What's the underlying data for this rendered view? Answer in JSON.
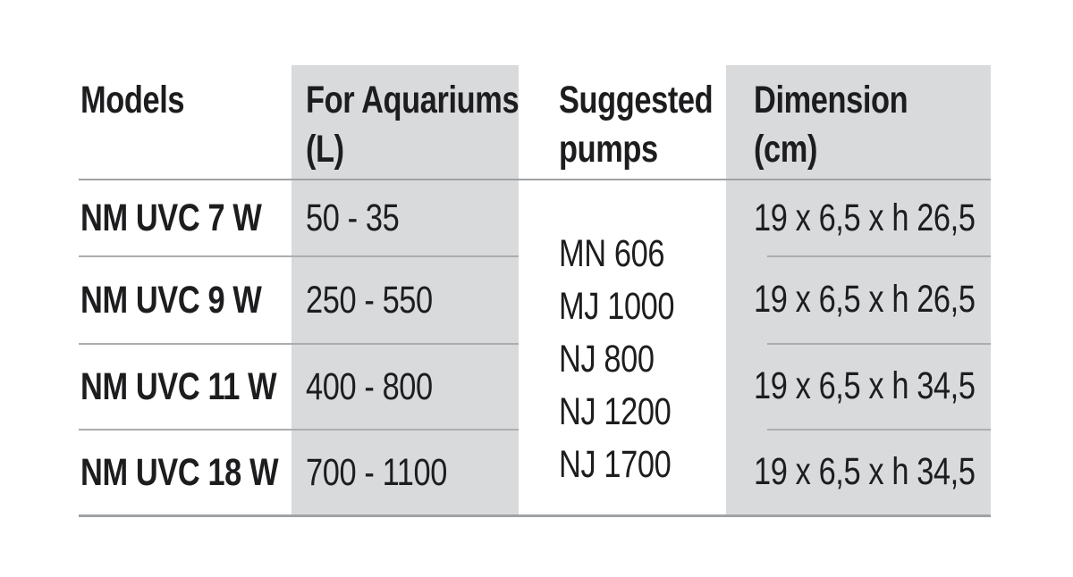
{
  "table": {
    "columns": [
      {
        "id": "models",
        "label_line1": "Models",
        "label_line2": ""
      },
      {
        "id": "aquariums",
        "label_line1": "For Aquariums",
        "label_line2": "(L)"
      },
      {
        "id": "pumps",
        "label_line1": "Suggested",
        "label_line2": "pumps"
      },
      {
        "id": "dimension",
        "label_line1": "Dimension",
        "label_line2": "(cm)"
      }
    ],
    "rows": [
      {
        "model": "NM UVC 7 W",
        "aquariums": "50 - 35",
        "dimension": "19 x 6,5 x h 26,5"
      },
      {
        "model": "NM UVC 9 W",
        "aquariums": "250 - 550",
        "dimension": "19 x 6,5 x h 26,5"
      },
      {
        "model": "NM UVC 11 W",
        "aquariums": "400 - 800",
        "dimension": "19 x 6,5 x h 34,5"
      },
      {
        "model": "NM UVC 18 W",
        "aquariums": "700 - 1100",
        "dimension": "19 x 6,5 x h 34,5"
      }
    ],
    "suggested_pumps": [
      "MN 606",
      "MJ 1000",
      "NJ 800",
      "NJ 1200",
      "NJ 1700"
    ]
  },
  "colors": {
    "background": "#ffffff",
    "column_band": "#d9dadb",
    "text": "#1d1d1f",
    "row_divider": "#abadaf",
    "header_divider": "#9fa1a3",
    "bottom_border": "#a0a2a4"
  }
}
